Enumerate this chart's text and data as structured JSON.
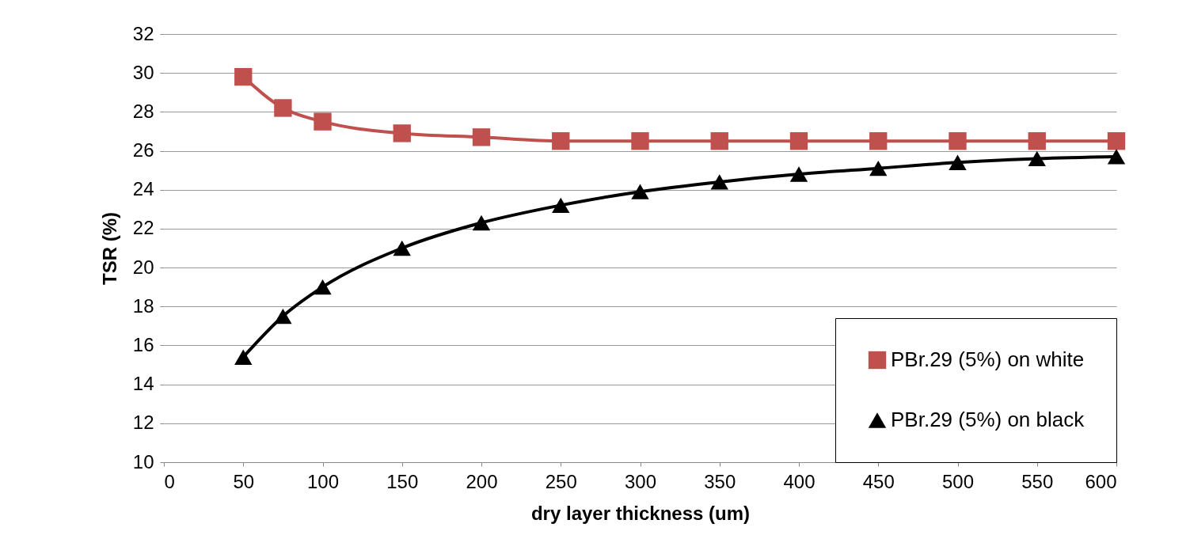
{
  "chart_data": {
    "type": "line",
    "xlabel": "dry layer thickness (um)",
    "ylabel": "TSR (%)",
    "x": [
      50,
      75,
      100,
      150,
      200,
      250,
      300,
      350,
      400,
      450,
      500,
      550,
      600
    ],
    "series": [
      {
        "name": "PBr.29 (5%) on white",
        "color": "#c0504d",
        "marker": "square",
        "values": [
          29.8,
          28.2,
          27.5,
          26.9,
          26.7,
          26.5,
          26.5,
          26.5,
          26.5,
          26.5,
          26.5,
          26.5,
          26.5
        ]
      },
      {
        "name": "PBr.29 (5%) on black",
        "color": "#000000",
        "marker": "triangle",
        "values": [
          15.4,
          17.5,
          19.0,
          21.0,
          22.3,
          23.2,
          23.9,
          24.4,
          24.8,
          25.1,
          25.4,
          25.6,
          25.7
        ]
      }
    ],
    "xlim": [
      0,
      600
    ],
    "xticks": [
      0,
      50,
      100,
      150,
      200,
      250,
      300,
      350,
      400,
      450,
      500,
      550,
      600
    ],
    "ylim": [
      10,
      32
    ],
    "yticks": [
      10,
      12,
      14,
      16,
      18,
      20,
      22,
      24,
      26,
      28,
      30,
      32
    ],
    "grid": "y",
    "legend": "bottom right",
    "line_style": "solid"
  }
}
